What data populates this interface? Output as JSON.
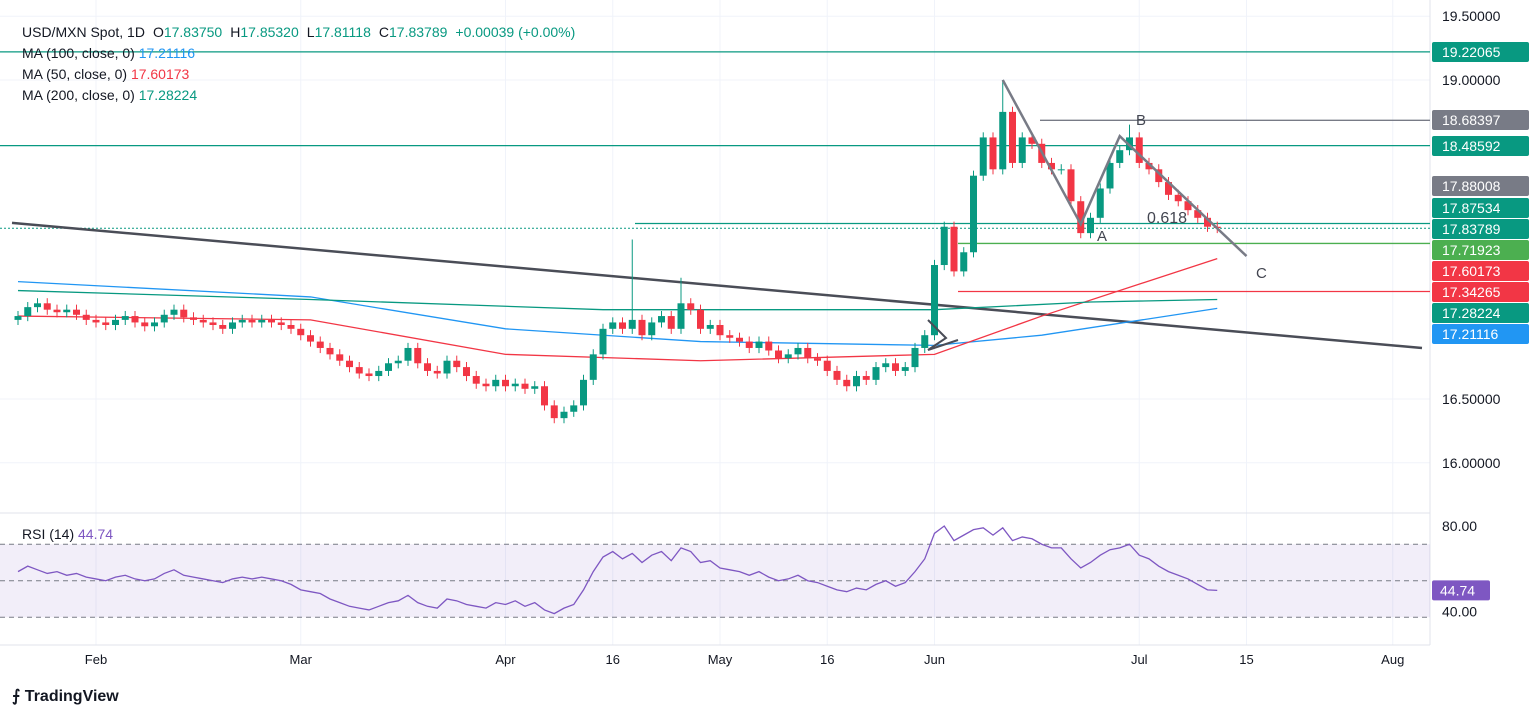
{
  "header": {
    "symbol": "USD/MXN Spot, 1D",
    "o_label": "O",
    "o": "17.83750",
    "h_label": "H",
    "h": "17.85320",
    "l_label": "L",
    "l": "17.81118",
    "c_label": "C",
    "c": "17.83789",
    "change": "+0.00039 (+0.00%)"
  },
  "indicators": [
    {
      "label": "MA (100, close, 0)",
      "value": "17.21116",
      "color": "#2196f3"
    },
    {
      "label": "MA (50, close, 0)",
      "value": "17.60173",
      "color": "#f23645"
    },
    {
      "label": "MA (200, close, 0)",
      "value": "17.28224",
      "color": "#089981"
    }
  ],
  "rsi_legend": {
    "label": "RSI (14)",
    "value": "44.74"
  },
  "branding": "TradingView",
  "chart_data": {
    "type": "candlestick",
    "ylim": [
      15.75,
      19.6
    ],
    "y_ticks": [
      "19.50000",
      "19.00000",
      "16.50000",
      "16.00000"
    ],
    "x_ticks": [
      {
        "label": "Feb",
        "bar": 8
      },
      {
        "label": "Mar",
        "bar": 29
      },
      {
        "label": "Apr",
        "bar": 50
      },
      {
        "label": "16",
        "bar": 61
      },
      {
        "label": "May",
        "bar": 72
      },
      {
        "label": "16",
        "bar": 83
      },
      {
        "label": "Jun",
        "bar": 94
      },
      {
        "label": "Jul",
        "bar": 115
      },
      {
        "label": "15",
        "bar": 126
      },
      {
        "label": "Aug",
        "bar": 141
      }
    ],
    "closes": [
      17.15,
      17.22,
      17.25,
      17.2,
      17.18,
      17.2,
      17.16,
      17.12,
      17.1,
      17.08,
      17.12,
      17.15,
      17.1,
      17.07,
      17.1,
      17.16,
      17.2,
      17.14,
      17.12,
      17.1,
      17.08,
      17.05,
      17.1,
      17.12,
      17.1,
      17.12,
      17.1,
      17.08,
      17.05,
      17.0,
      16.95,
      16.9,
      16.85,
      16.8,
      16.75,
      16.7,
      16.68,
      16.72,
      16.78,
      16.8,
      16.9,
      16.78,
      16.72,
      16.7,
      16.8,
      16.75,
      16.68,
      16.62,
      16.6,
      16.65,
      16.6,
      16.62,
      16.58,
      16.6,
      16.45,
      16.35,
      16.4,
      16.45,
      16.65,
      16.85,
      17.05,
      17.1,
      17.05,
      17.12,
      17.0,
      17.1,
      17.15,
      17.05,
      17.25,
      17.2,
      17.05,
      17.08,
      17.0,
      16.98,
      16.95,
      16.9,
      16.95,
      16.88,
      16.82,
      16.85,
      16.9,
      16.82,
      16.8,
      16.72,
      16.65,
      16.6,
      16.68,
      16.65,
      16.75,
      16.78,
      16.72,
      16.75,
      16.9,
      17.0,
      17.55,
      17.85,
      17.5,
      17.65,
      18.25,
      18.55,
      18.3,
      18.75,
      18.35,
      18.55,
      18.5,
      18.35,
      18.3,
      18.3,
      18.05,
      17.8,
      17.92,
      18.15,
      18.35,
      18.45,
      18.55,
      18.35,
      18.3,
      18.2,
      18.1,
      18.05,
      17.98,
      17.92,
      17.85,
      17.84
    ],
    "notable_highs": [
      {
        "bar": 63,
        "high": 17.75
      },
      {
        "bar": 68,
        "high": 17.45
      },
      {
        "bar": 101,
        "high": 19.0
      },
      {
        "bar": 114,
        "high": 18.65
      }
    ],
    "ma": [
      {
        "name": "MA (100, close, 0)",
        "color": "#2196f3",
        "points": [
          [
            0,
            17.42
          ],
          [
            30,
            17.3
          ],
          [
            50,
            17.05
          ],
          [
            70,
            16.95
          ],
          [
            94,
            16.92
          ],
          [
            105,
            17.0
          ],
          [
            123,
            17.21
          ]
        ]
      },
      {
        "name": "MA (50, close, 0)",
        "color": "#f23645",
        "points": [
          [
            0,
            17.15
          ],
          [
            30,
            17.12
          ],
          [
            50,
            16.85
          ],
          [
            70,
            16.8
          ],
          [
            94,
            16.85
          ],
          [
            105,
            17.15
          ],
          [
            123,
            17.6
          ]
        ]
      },
      {
        "name": "MA (200, close, 0)",
        "color": "#089981",
        "points": [
          [
            0,
            17.35
          ],
          [
            30,
            17.28
          ],
          [
            60,
            17.2
          ],
          [
            94,
            17.2
          ],
          [
            110,
            17.26
          ],
          [
            123,
            17.28
          ]
        ]
      }
    ],
    "price_labels": [
      {
        "value": "19.22065",
        "color": "#089981"
      },
      {
        "value": "18.68397",
        "color": "#787b86"
      },
      {
        "value": "18.48592",
        "color": "#089981"
      },
      {
        "value": "17.88008",
        "color": "#787b86"
      },
      {
        "value": "17.87534",
        "color": "#089981"
      },
      {
        "value": "17.83789",
        "color": "#089981"
      },
      {
        "value": "17.71923",
        "color": "#4caf50"
      },
      {
        "value": "17.60173",
        "color": "#f23645"
      },
      {
        "value": "17.34265",
        "color": "#f23645"
      },
      {
        "value": "17.28224",
        "color": "#089981"
      },
      {
        "value": "17.21116",
        "color": "#2196f3"
      }
    ],
    "annotations": {
      "wave_labels": [
        "A",
        "B",
        "C"
      ],
      "fib": "0.618",
      "abc_points": [
        [
          101,
          19.0
        ],
        [
          109,
          17.87
        ],
        [
          113,
          18.56
        ],
        [
          126,
          17.62
        ]
      ],
      "trendline": [
        [
          0,
          17.88
        ],
        [
          144,
          16.9
        ]
      ]
    },
    "rsi": {
      "ylim": [
        25,
        85
      ],
      "ticks": [
        "80.00",
        "40.00"
      ],
      "bands": [
        70,
        50,
        30
      ],
      "values": [
        55,
        58,
        56,
        54,
        55,
        53,
        54,
        52,
        51,
        50,
        52,
        53,
        51,
        50,
        51,
        54,
        56,
        53,
        52,
        51,
        50,
        49,
        51,
        52,
        51,
        52,
        51,
        50,
        48,
        45,
        44,
        43,
        40,
        38,
        36,
        35,
        34,
        36,
        38,
        39,
        42,
        38,
        36,
        35,
        40,
        39,
        37,
        36,
        35,
        38,
        37,
        39,
        36,
        38,
        34,
        32,
        35,
        37,
        45,
        55,
        63,
        66,
        62,
        65,
        60,
        64,
        66,
        61,
        68,
        66,
        60,
        61,
        57,
        56,
        55,
        53,
        55,
        52,
        50,
        51,
        53,
        50,
        49,
        47,
        45,
        44,
        46,
        45,
        48,
        50,
        47,
        49,
        55,
        62,
        76,
        80,
        72,
        75,
        78,
        79,
        75,
        79,
        72,
        74,
        73,
        70,
        68,
        68,
        62,
        57,
        60,
        64,
        67,
        68,
        70,
        64,
        62,
        58,
        55,
        53,
        51,
        48,
        45,
        44.74
      ]
    }
  }
}
